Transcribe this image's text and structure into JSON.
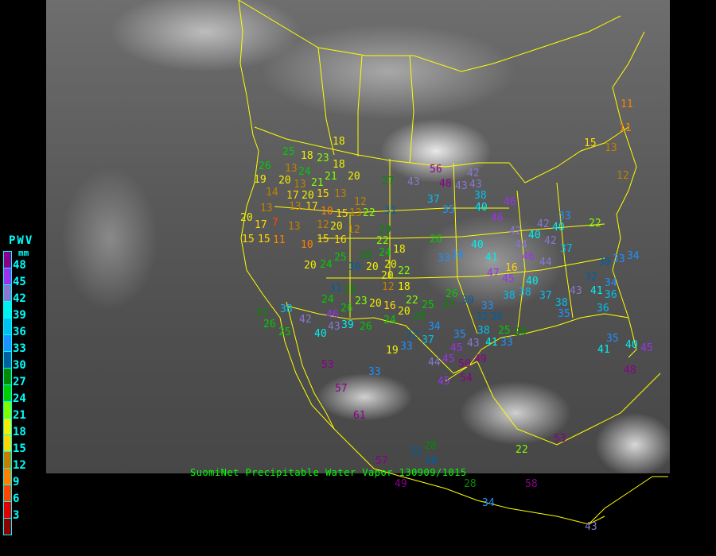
{
  "caption": "SuomiNet Precipitable Water Vapor  130909/1015",
  "legend": {
    "title": "PWV",
    "unit": "mm",
    "ticks": [
      "48",
      "45",
      "42",
      "39",
      "36",
      "33",
      "30",
      "27",
      "24",
      "21",
      "18",
      "15",
      "12",
      "9",
      "6",
      "3"
    ],
    "colors": [
      "#8b008b",
      "#9a32f0",
      "#8878d0",
      "#00f0f0",
      "#00c0f0",
      "#1e90ff",
      "#005f9f",
      "#008b00",
      "#00cc00",
      "#7fff00",
      "#f0f000",
      "#ffd700",
      "#c08000",
      "#ff8000",
      "#ff4500",
      "#e00000",
      "#8b0000"
    ]
  },
  "colors": {
    "borders": "#ffff00",
    "caption": "#00ff00",
    "legend_text": "#00ffff"
  },
  "stations": [
    "25",
    "18",
    "23",
    "18",
    "18",
    "21",
    "20",
    "13",
    "24",
    "21",
    "26",
    "19",
    "20",
    "13",
    "14",
    "17",
    "20",
    "15",
    "13",
    "13",
    "17",
    "10",
    "15",
    "13",
    "12",
    "22",
    "31",
    "13",
    "20",
    "17",
    "7",
    "15",
    "15",
    "11",
    "13",
    "12",
    "10",
    "15",
    "16",
    "12",
    "20",
    "29",
    "22",
    "18",
    "24",
    "20",
    "28",
    "25",
    "24",
    "20",
    "30",
    "20",
    "20",
    "22",
    "26",
    "27",
    "43",
    "56",
    "37",
    "35",
    "48",
    "43",
    "43",
    "42",
    "38",
    "40",
    "46",
    "46",
    "42",
    "40",
    "40",
    "34",
    "33",
    "41",
    "47",
    "16",
    "45",
    "46",
    "44",
    "42",
    "40",
    "42",
    "44",
    "37",
    "33",
    "30",
    "33",
    "34",
    "34",
    "36",
    "32",
    "43",
    "41",
    "38",
    "38",
    "40",
    "37",
    "38",
    "35",
    "36",
    "12",
    "18",
    "23",
    "20",
    "16",
    "20",
    "24",
    "26",
    "28",
    "22",
    "25",
    "27",
    "26",
    "30",
    "33",
    "32",
    "34",
    "37",
    "32",
    "33",
    "19",
    "35",
    "45",
    "43",
    "45",
    "44",
    "50",
    "49",
    "54",
    "45",
    "38",
    "41",
    "33",
    "25",
    "29",
    "30",
    "53",
    "57",
    "61",
    "57",
    "32",
    "28",
    "30",
    "33",
    "43",
    "40",
    "39",
    "46",
    "25",
    "26",
    "27",
    "38",
    "42",
    "31",
    "29",
    "24",
    "26",
    "22",
    "53",
    "58",
    "49",
    "28",
    "34",
    "43",
    "40",
    "45",
    "48",
    "35",
    "41",
    "15",
    "13",
    "11",
    "11",
    "12",
    "22",
    "27"
  ]
}
